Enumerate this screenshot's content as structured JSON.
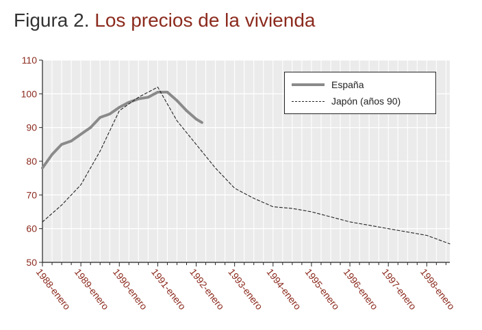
{
  "title": {
    "prefix": "Figura 2.",
    "main": " Los precios de la vivienda"
  },
  "chart_data": {
    "type": "line",
    "ylim": [
      50,
      110
    ],
    "y_ticks": [
      50,
      60,
      70,
      80,
      90,
      100,
      110
    ],
    "x_ticks": [
      "1988-enero",
      "1989-enero",
      "1990-enero",
      "1991-enero",
      "1992-enero",
      "1993-enero",
      "1994-enero",
      "1995-enero",
      "1996-enero",
      "1997-enero",
      "1998-enero"
    ],
    "xlim": [
      1988.0,
      1998.6
    ],
    "grid": true,
    "legend_position": "top-right",
    "colors": {
      "espana": "#8a8a8a",
      "japon": "#222222",
      "title_accent": "#8b2a1d",
      "tick_label": "#8b2a1d",
      "plot_bg": "#ebebeb"
    },
    "series": [
      {
        "name": "España",
        "style": "solid",
        "x": [
          1988.0,
          1988.25,
          1988.5,
          1988.75,
          1989.0,
          1989.25,
          1989.5,
          1989.75,
          1990.0,
          1990.25,
          1990.5,
          1990.75,
          1991.0,
          1991.25,
          1991.5,
          1991.75,
          1992.0,
          1992.15
        ],
        "y": [
          78,
          82,
          85,
          86,
          88,
          90,
          93,
          94,
          96,
          97.5,
          98.5,
          99,
          100.5,
          100.5,
          98,
          95,
          92.5,
          91.5
        ]
      },
      {
        "name": "Japón (años 90)",
        "style": "dashed",
        "x": [
          1988.0,
          1988.5,
          1989.0,
          1989.5,
          1990.0,
          1990.5,
          1991.0,
          1991.5,
          1992.0,
          1992.5,
          1993.0,
          1993.5,
          1994.0,
          1994.5,
          1995.0,
          1995.5,
          1996.0,
          1996.5,
          1997.0,
          1997.5,
          1998.0,
          1998.6
        ],
        "y": [
          62,
          67,
          73,
          83,
          95,
          99,
          102,
          92,
          85,
          78,
          72,
          69,
          66.5,
          66,
          65,
          63.5,
          62,
          61,
          60,
          59,
          58,
          55.5
        ]
      }
    ]
  }
}
